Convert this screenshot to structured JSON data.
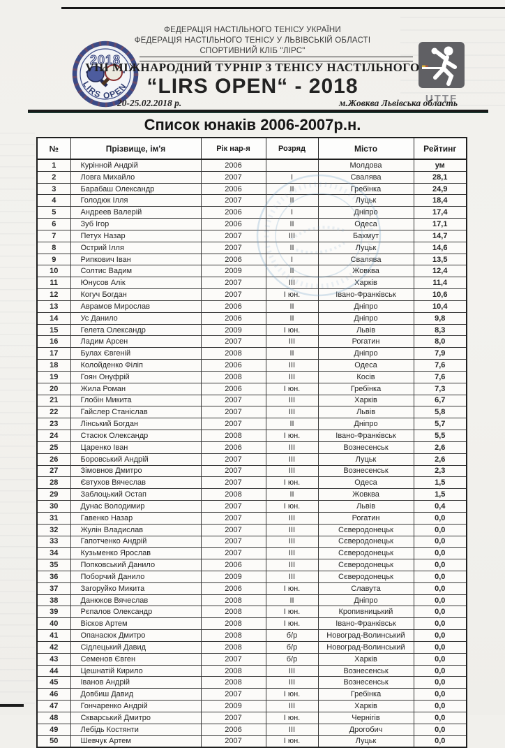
{
  "page": {
    "org_lines": [
      "ФЕДЕРАЦІЯ НАСТІЛЬНОГО ТЕНІСУ УКРАЇНИ",
      "ФЕДЕРАЦІЯ НАСТІЛЬНОГО ТЕНІСУ У ЛЬВІВСЬКІЙ ОБЛАСТІ",
      "СПОРТИВНИЙ КЛІБ \"ЛІРС\""
    ],
    "tournament_title": "VIII МІЖНАРОДНИЙ ТУРНІР З ТЕНІСУ НАСТІЛЬНОГО",
    "event_name": "“LIRS OPEN“ -  2018",
    "dates": "20-25.02.2018 р.",
    "location": "м.Жовква Львівська область",
    "list_title": "Список юнаків 2006-2007р.н.",
    "logo_left": {
      "year": "2018",
      "name": "LIRS OPEN"
    },
    "logo_right": {
      "label": "UTTF"
    }
  },
  "colors": {
    "ink": "#1c1c1c",
    "stamp_blue": "#6f9fc4",
    "logo_navy": "#3b4a86",
    "uttf_gray": "#606064"
  },
  "table": {
    "headers": [
      "№",
      "Прізвище, ім'я",
      "Рік нар-я",
      "Розряд",
      "Місто",
      "Рейтинг"
    ],
    "rows": [
      [
        "1",
        "Курінной Андрій",
        "2006",
        "",
        "Молдова",
        "ум"
      ],
      [
        "2",
        "Ловга Михайло",
        "2007",
        "I",
        "Свалява",
        "28,1"
      ],
      [
        "3",
        "Барабаш Олександр",
        "2006",
        "II",
        "Гребінка",
        "24,9"
      ],
      [
        "4",
        "Голодюк Ілля",
        "2007",
        "II",
        "Луцьк",
        "18,4"
      ],
      [
        "5",
        "Андреев Валерій",
        "2006",
        "I",
        "Дніпро",
        "17,4"
      ],
      [
        "6",
        "Зуб Ігор",
        "2006",
        "II",
        "Одеса",
        "17,1"
      ],
      [
        "7",
        "Петух Назар",
        "2007",
        "III",
        "Бахмут",
        "14,7"
      ],
      [
        "8",
        "Острий Ілля",
        "2007",
        "II",
        "Луцьк",
        "14,6"
      ],
      [
        "9",
        "Рипкович Іван",
        "2006",
        "I",
        "Свалява",
        "13,5"
      ],
      [
        "10",
        "Солтис Вадим",
        "2009",
        "II",
        "Жовква",
        "12,4"
      ],
      [
        "11",
        "Юнусов Алік",
        "2007",
        "III",
        "Харків",
        "11,4"
      ],
      [
        "12",
        "Когуч Богдан",
        "2007",
        "І юн.",
        "Івано-Франківськ",
        "10,6"
      ],
      [
        "13",
        "Аврамов Мирослав",
        "2006",
        "II",
        "Дніпро",
        "10,4"
      ],
      [
        "14",
        "Ус Данило",
        "2006",
        "II",
        "Дніпро",
        "9,8"
      ],
      [
        "15",
        "Гелета Олександр",
        "2009",
        "І юн.",
        "Львів",
        "8,3"
      ],
      [
        "16",
        "Ладим Арсен",
        "2007",
        "III",
        "Рогатин",
        "8,0"
      ],
      [
        "17",
        "Булах Євгеній",
        "2008",
        "II",
        "Дніпро",
        "7,9"
      ],
      [
        "18",
        "Колойденко Філіп",
        "2006",
        "III",
        "Одеса",
        "7,6"
      ],
      [
        "19",
        "Гоян Онуфрій",
        "2008",
        "III",
        "Косів",
        "7,6"
      ],
      [
        "20",
        "Жила Роман",
        "2006",
        "І юн.",
        "Гребінка",
        "7,3"
      ],
      [
        "21",
        "Глобін Микита",
        "2007",
        "III",
        "Харків",
        "6,7"
      ],
      [
        "22",
        "Гайслер Станіслав",
        "2007",
        "III",
        "Львів",
        "5,8"
      ],
      [
        "23",
        "Лінський Богдан",
        "2007",
        "II",
        "Дніпро",
        "5,7"
      ],
      [
        "24",
        "Стасюк Олександр",
        "2008",
        "І юн.",
        "Івано-Франківськ",
        "5,5"
      ],
      [
        "25",
        "Царенко Іван",
        "2006",
        "III",
        "Вознесенськ",
        "2,6"
      ],
      [
        "26",
        "Боровський Андрій",
        "2007",
        "III",
        "Луцьк",
        "2,6"
      ],
      [
        "27",
        "Зімовнов Дмитро",
        "2007",
        "III",
        "Вознесенськ",
        "2,3"
      ],
      [
        "28",
        "Євтухов Вячеслав",
        "2007",
        "І юн.",
        "Одеса",
        "1,5"
      ],
      [
        "29",
        "Заблоцький Остап",
        "2008",
        "II",
        "Жовква",
        "1,5"
      ],
      [
        "30",
        "Дунас Володимир",
        "2007",
        "І юн.",
        "Львів",
        "0,4"
      ],
      [
        "31",
        "Гавенко Назар",
        "2007",
        "III",
        "Рогатин",
        "0,0"
      ],
      [
        "32",
        "Жулін Владислав",
        "2007",
        "III",
        "Сєверодонецьк",
        "0,0"
      ],
      [
        "33",
        "Гапотченко Андрій",
        "2007",
        "III",
        "Сєверодонецьк",
        "0,0"
      ],
      [
        "34",
        "Кузьменко Ярослав",
        "2007",
        "III",
        "Сєверодонецьк",
        "0,0"
      ],
      [
        "35",
        "Попковський Данило",
        "2006",
        "III",
        "Сєверодонецьк",
        "0,0"
      ],
      [
        "36",
        "Поборчий Данило",
        "2009",
        "III",
        "Сєверодонецьк",
        "0,0"
      ],
      [
        "37",
        "Загоруйко Микита",
        "2006",
        "І юн.",
        "Славута",
        "0,0"
      ],
      [
        "38",
        "Данюков Вячеслав",
        "2008",
        "II",
        "Дніпро",
        "0,0"
      ],
      [
        "39",
        "Рєпалов Олександр",
        "2008",
        "І юн.",
        "Кропивницький",
        "0,0"
      ],
      [
        "40",
        "Вісков Артем",
        "2008",
        "І юн.",
        "Івано-Франківськ",
        "0,0"
      ],
      [
        "41",
        "Опанасюк Дмитро",
        "2008",
        "б/р",
        "Новоград-Волинський",
        "0,0"
      ],
      [
        "42",
        "Сідлецький Давид",
        "2008",
        "б/р",
        "Новоград-Волинський",
        "0,0"
      ],
      [
        "43",
        "Семенов Євген",
        "2007",
        "б/р",
        "Харків",
        "0,0"
      ],
      [
        "44",
        "Цешнатій Кирило",
        "2008",
        "III",
        "Вознесенськ",
        "0,0"
      ],
      [
        "45",
        "Іванов Андрій",
        "2008",
        "III",
        "Вознесенськ",
        "0,0"
      ],
      [
        "46",
        "Довбиш Давид",
        "2007",
        "І юн.",
        "Гребінка",
        "0,0"
      ],
      [
        "47",
        "Гончаренко Андрій",
        "2009",
        "III",
        "Харків",
        "0,0"
      ],
      [
        "48",
        "Скварський Дмитро",
        "2007",
        "І юн.",
        "Чернігів",
        "0,0"
      ],
      [
        "49",
        "Лебідь Костянти",
        "2006",
        "III",
        "Дрогобич",
        "0,0"
      ],
      [
        "50",
        "Шевчук Артем",
        "2007",
        "І юн.",
        "Луцьк",
        "0,0"
      ]
    ]
  }
}
